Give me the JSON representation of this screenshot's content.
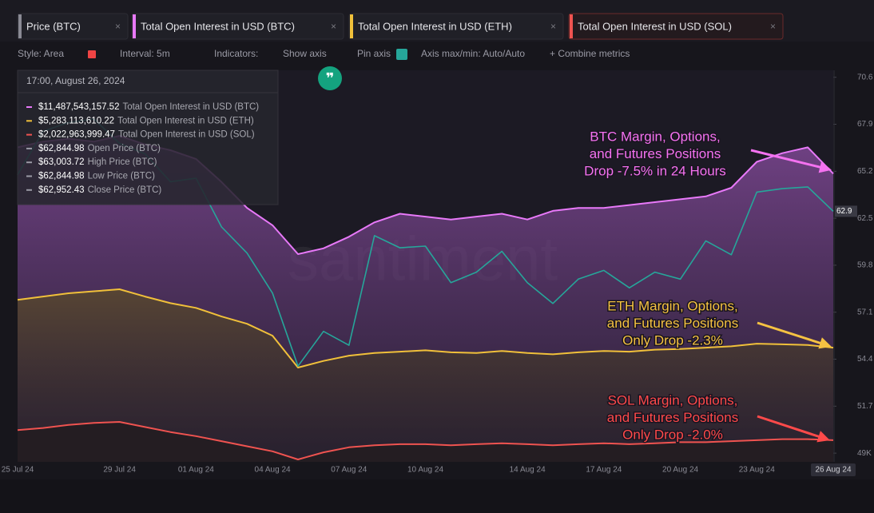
{
  "ui": {
    "tabs": [
      "Price (BTC)",
      "Total Open Interest in USD (BTC)",
      "Total Open Interest in USD (ETH)",
      "Total Open Interest in USD (SOL)"
    ],
    "tab_colors": [
      "#8a8a94",
      "#e879f9",
      "#f0c03a",
      "#ef5350"
    ],
    "toolbar": [
      "Style: Area",
      "Interval: 5m",
      "Indicators:",
      "Show axis",
      "Pin axis",
      "Axis max/min: Auto/Auto",
      "+ Combine metrics"
    ],
    "tooltip": {
      "title": "17:00, August 26, 2024",
      "rows": [
        {
          "value": "$11,487,543,157.52",
          "label": "Total Open Interest in USD (BTC)",
          "color": "#e879f9"
        },
        {
          "value": "$5,283,113,610.22",
          "label": "Total Open Interest in USD (ETH)",
          "color": "#f0c03a"
        },
        {
          "value": "$2,022,963,999.47",
          "label": "Total Open Interest in USD (SOL)",
          "color": "#ef5350"
        },
        {
          "value": "$62,844.98",
          "label": "Open Price (BTC)",
          "color": "#9a9aa5"
        },
        {
          "value": "$63,003.72",
          "label": "High Price (BTC)",
          "color": "#9a9aa5"
        },
        {
          "value": "$62,844.98",
          "label": "Low Price (BTC)",
          "color": "#9a9aa5"
        },
        {
          "value": "$62,952.43",
          "label": "Close Price (BTC)",
          "color": "#9a9aa5"
        }
      ]
    },
    "watermark": "santiment",
    "price_marker": "62.9"
  },
  "chart_data": {
    "type": "line",
    "categories": [
      "25 Jul 24",
      null,
      null,
      null,
      "29 Jul 24",
      null,
      null,
      "01 Aug 24",
      null,
      null,
      "04 Aug 24",
      null,
      null,
      "07 Aug 24",
      null,
      null,
      "10 Aug 24",
      null,
      null,
      null,
      "14 Aug 24",
      null,
      null,
      "17 Aug 24",
      null,
      null,
      "20 Aug 24",
      null,
      null,
      "23 Aug 24",
      null,
      null,
      "26 Aug 24"
    ],
    "series": [
      {
        "name": "Price (BTC)",
        "color": "#26a69a",
        "axis": "y",
        "values": [
          65.0,
          67.5,
          68.0,
          68.2,
          66.8,
          66.2,
          64.6,
          64.8,
          62.0,
          60.5,
          58.2,
          54.0,
          56.0,
          55.2,
          61.5,
          60.8,
          60.9,
          58.8,
          59.4,
          60.6,
          58.8,
          57.6,
          59.0,
          59.5,
          58.5,
          59.4,
          59.0,
          61.2,
          60.4,
          64.0,
          64.2,
          64.3,
          62.9
        ]
      },
      {
        "name": "Total Open Interest in USD (BTC)",
        "color": "#e879f9",
        "values": [
          12400000000,
          12600000000,
          12700000000,
          12600000000,
          12800000000,
          12500000000,
          12300000000,
          12000000000,
          11200000000,
          10300000000,
          9700000000,
          8700000000,
          8900000000,
          9300000000,
          9800000000,
          10100000000,
          10000000000,
          9900000000,
          10000000000,
          10100000000,
          9900000000,
          10200000000,
          10300000000,
          10300000000,
          10400000000,
          10500000000,
          10600000000,
          10700000000,
          11000000000,
          11900000000,
          12200000000,
          12400000000,
          11490000000
        ]
      },
      {
        "name": "Total Open Interest in USD (ETH)",
        "color": "#f0c03a",
        "values": [
          6000000000,
          6050000000,
          6100000000,
          6130000000,
          6160000000,
          6050000000,
          5950000000,
          5880000000,
          5750000000,
          5640000000,
          5460000000,
          4980000000,
          5080000000,
          5160000000,
          5200000000,
          5220000000,
          5240000000,
          5210000000,
          5200000000,
          5230000000,
          5200000000,
          5180000000,
          5210000000,
          5230000000,
          5220000000,
          5250000000,
          5260000000,
          5280000000,
          5300000000,
          5340000000,
          5330000000,
          5320000000,
          5280000000
        ]
      },
      {
        "name": "Total Open Interest in USD (SOL)",
        "color": "#ef5350",
        "values": [
          2120000000,
          2140000000,
          2170000000,
          2190000000,
          2200000000,
          2150000000,
          2100000000,
          2060000000,
          2010000000,
          1960000000,
          1910000000,
          1830000000,
          1900000000,
          1950000000,
          1970000000,
          1980000000,
          1980000000,
          1970000000,
          1980000000,
          1990000000,
          1980000000,
          1970000000,
          1980000000,
          1990000000,
          1980000000,
          1990000000,
          2000000000,
          2000000000,
          2010000000,
          2020000000,
          2030000000,
          2030000000,
          2020000000
        ]
      }
    ],
    "ylim": [
      48.5,
      71
    ],
    "yticks": [
      {
        "value": 49,
        "label": "49K"
      },
      51.7,
      54.4,
      57.1,
      59.8,
      62.5,
      65.2,
      67.9,
      70.6
    ],
    "annotations": [
      {
        "lines": [
          "BTC Margin, Options,",
          "and Futures Positions",
          "Drop -7.5% in 24 Hours"
        ],
        "color": "#f472f0"
      },
      {
        "lines": [
          "ETH Margin, Options,",
          "and Futures Positions",
          "Only Drop -2.3%"
        ],
        "color": "#f5c242"
      },
      {
        "lines": [
          "SOL Margin, Options,",
          "and Futures Positions",
          "Only Drop -2.0%"
        ],
        "color": "#ff4a4a"
      }
    ]
  }
}
